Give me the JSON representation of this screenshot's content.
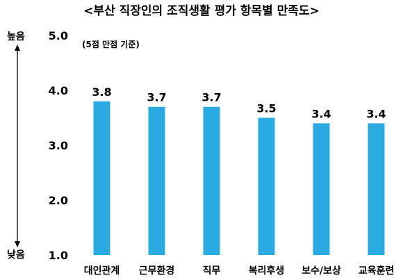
{
  "chart_data": {
    "type": "bar",
    "title": "<부산 직장인의 조직생활 평가 항목별 만족도>",
    "note": "(5점 만점 기준)",
    "categories": [
      "대인관계",
      "근무환경",
      "직무",
      "복리후생",
      "보수/보상",
      "교육훈련"
    ],
    "values": [
      3.8,
      3.7,
      3.7,
      3.5,
      3.4,
      3.4
    ],
    "data_labels": [
      "3.8",
      "3.7",
      "3.7",
      "3.5",
      "3.4",
      "3.4"
    ],
    "ylim": [
      1.0,
      5.0
    ],
    "yticks": [
      "1.0",
      "2.0",
      "3.0",
      "4.0",
      "5.0"
    ],
    "axis_top_label": "높음",
    "axis_bottom_label": "낮음",
    "bar_color": "#29ABE2",
    "grid": false,
    "legend": "none"
  }
}
